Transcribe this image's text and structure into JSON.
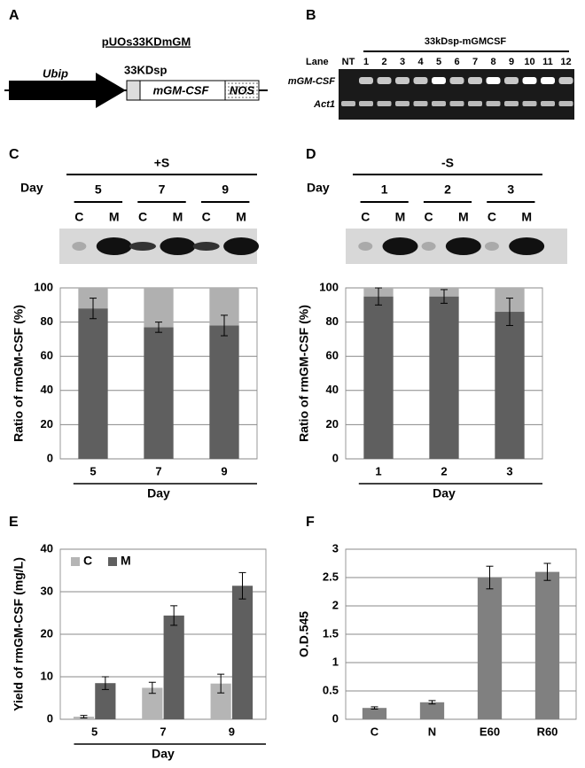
{
  "panel_labels": [
    "A",
    "B",
    "C",
    "D",
    "E",
    "F"
  ],
  "construct": {
    "title": "pUOs33KDmGM",
    "promoter": "Ubip",
    "signal": "33KDsp",
    "gene": "mGM-CSF",
    "terminator": "NOS"
  },
  "gel": {
    "header": "33kDsp-mGMCSF",
    "lane_label": "Lane",
    "lanes": [
      "NT",
      "1",
      "2",
      "3",
      "4",
      "5",
      "6",
      "7",
      "8",
      "9",
      "10",
      "11",
      "12"
    ],
    "rows": [
      "mGM-CSF",
      "Act1"
    ]
  },
  "blots": [
    {
      "condition": "+S",
      "day_label": "Day",
      "days": [
        "5",
        "7",
        "9"
      ],
      "fractions": [
        "C",
        "M"
      ]
    },
    {
      "condition": "-S",
      "day_label": "Day",
      "days": [
        "1",
        "2",
        "3"
      ],
      "fractions": [
        "C",
        "M"
      ]
    }
  ],
  "chart_data": [
    {
      "type": "stacked_bar",
      "ylabel": "Ratio of rmGM-CSF (%)",
      "xlabel": "Day",
      "categories": [
        "5",
        "7",
        "9"
      ],
      "series": [
        {
          "color": "#5f5f5f",
          "values": [
            88,
            77,
            78
          ],
          "errors": [
            6,
            3,
            6
          ]
        },
        {
          "color": "#b0b0b0",
          "values": [
            12,
            23,
            22
          ]
        }
      ],
      "ylim": [
        0,
        100
      ],
      "yticks": [
        0,
        20,
        40,
        60,
        80,
        100
      ],
      "grid": true
    },
    {
      "type": "stacked_bar",
      "ylabel": "Ratio of rmGM-CSF (%)",
      "xlabel": "Day",
      "categories": [
        "1",
        "2",
        "3"
      ],
      "series": [
        {
          "color": "#5f5f5f",
          "values": [
            95,
            95,
            86
          ],
          "errors": [
            5,
            4,
            8
          ]
        },
        {
          "color": "#b0b0b0",
          "values": [
            5,
            5,
            14
          ]
        }
      ],
      "ylim": [
        0,
        100
      ],
      "yticks": [
        0,
        20,
        40,
        60,
        80,
        100
      ],
      "grid": true
    },
    {
      "type": "grouped_bar",
      "ylabel": "Yield of rmGM-CSF (mg/L)",
      "xlabel": "Day",
      "categories": [
        "5",
        "7",
        "9"
      ],
      "series": [
        {
          "name": "C",
          "color": "#b5b5b5",
          "values": [
            0.6,
            7.4,
            8.4
          ],
          "errors": [
            0.3,
            1.3,
            2.2
          ]
        },
        {
          "name": "M",
          "color": "#5f5f5f",
          "values": [
            8.5,
            24.4,
            31.4
          ],
          "errors": [
            1.5,
            2.3,
            3.1
          ]
        }
      ],
      "ylim": [
        0,
        40
      ],
      "yticks": [
        0,
        10,
        20,
        30,
        40
      ],
      "grid": true,
      "legend": "top-left"
    },
    {
      "type": "bar",
      "ylabel": "O.D.545",
      "categories": [
        "C",
        "N",
        "E60",
        "R60"
      ],
      "color": "#808080",
      "values": [
        0.2,
        0.3,
        2.5,
        2.6
      ],
      "errors": [
        0.02,
        0.03,
        0.2,
        0.15
      ],
      "ylim": [
        0,
        3
      ],
      "yticks": [
        0,
        0.5,
        1,
        1.5,
        2,
        2.5,
        3
      ],
      "grid": true
    }
  ]
}
